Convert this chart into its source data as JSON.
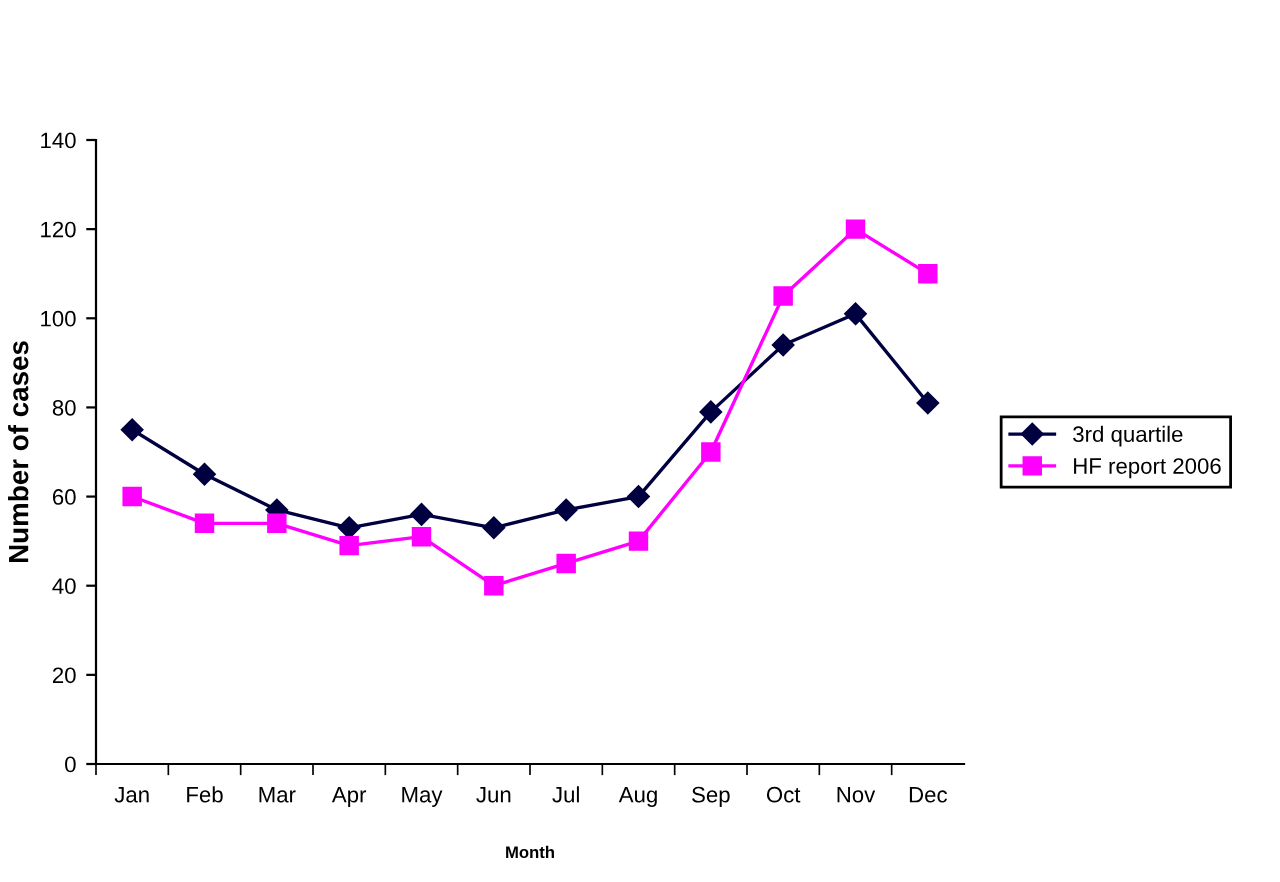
{
  "chart_data": {
    "type": "line",
    "xlabel": "Month",
    "ylabel": "Number of cases",
    "categories": [
      "Jan",
      "Feb",
      "Mar",
      "Apr",
      "May",
      "Jun",
      "Jul",
      "Aug",
      "Sep",
      "Oct",
      "Nov",
      "Dec"
    ],
    "series": [
      {
        "name": "3rd quartile",
        "color": "#000040",
        "marker": "diamond",
        "values": [
          75,
          65,
          57,
          53,
          56,
          53,
          57,
          60,
          79,
          94,
          101,
          81
        ]
      },
      {
        "name": "HF report 2006",
        "color": "#ff00ff",
        "marker": "square",
        "values": [
          60,
          54,
          54,
          49,
          51,
          40,
          45,
          50,
          70,
          105,
          120,
          110
        ]
      }
    ],
    "ylim": [
      0,
      140
    ],
    "yticks": [
      0,
      20,
      40,
      60,
      80,
      100,
      120,
      140
    ],
    "grid": false,
    "legend": "right"
  }
}
